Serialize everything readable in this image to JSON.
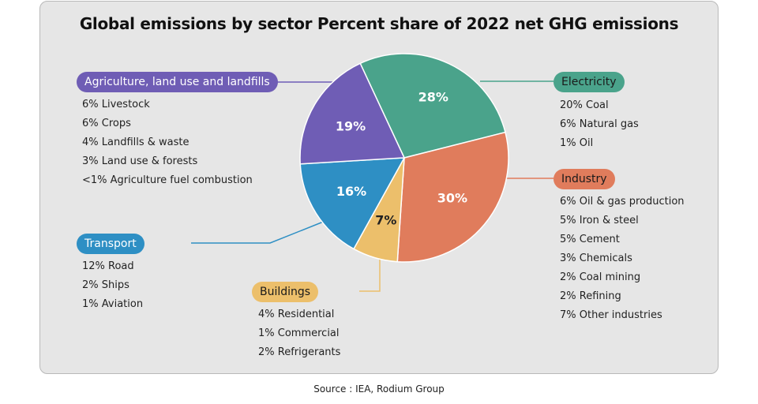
{
  "title": "Global emissions by sector Percent share of 2022 net GHG emissions",
  "source": "Source : IEA, Rodium Group",
  "chart_data": {
    "type": "pie",
    "title": "Global emissions by sector Percent share of 2022 net GHG emissions",
    "slices": [
      {
        "label": "Electricity",
        "value": 28,
        "value_label": "28%",
        "color": "#4aa38b",
        "details": [
          "20% Coal",
          "6% Natural gas",
          "1% Oil"
        ]
      },
      {
        "label": "Industry",
        "value": 30,
        "value_label": "30%",
        "color": "#e07c5c",
        "details": [
          "6% Oil & gas production",
          "5% Iron & steel",
          "5% Cement",
          "3% Chemicals",
          "2% Coal mining",
          "2% Refining",
          "7% Other industries"
        ]
      },
      {
        "label": "Buildings",
        "value": 7,
        "value_label": "7%",
        "color": "#ecbf6b",
        "details": [
          "4% Residential",
          "1% Commercial",
          "2% Refrigerants"
        ]
      },
      {
        "label": "Transport",
        "value": 16,
        "value_label": "16%",
        "color": "#2e8fc4",
        "details": [
          "12% Road",
          "2% Ships",
          "1% Aviation"
        ]
      },
      {
        "label": "Agriculture, land use and landfills",
        "value": 19,
        "value_label": "19%",
        "color": "#6f5db5",
        "details": [
          "6% Livestock",
          "6% Crops",
          "4% Landfills & waste",
          "3% Land use & forests",
          "<1% Agriculture fuel combustion"
        ]
      }
    ],
    "value_label_colors": {
      "Electricity": "#ffffff",
      "Industry": "#ffffff",
      "Buildings": "#222222",
      "Transport": "#ffffff",
      "Agriculture, land use and landfills": "#ffffff"
    }
  }
}
